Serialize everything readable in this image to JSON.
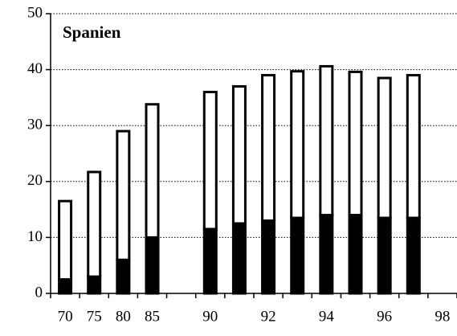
{
  "chart_data": {
    "type": "stacked-bar",
    "title": "Spanien",
    "categories": [
      "70",
      "75",
      "80",
      "85",
      null,
      "90",
      null,
      "92",
      null,
      "94",
      null,
      "96",
      null,
      "98"
    ],
    "series": [
      {
        "color": "#000000",
        "values": [
          2.5,
          3,
          6,
          10,
          null,
          11.5,
          12.5,
          13,
          13.5,
          14,
          14,
          13.5,
          13.5,
          null
        ]
      },
      {
        "color": "#ffffff",
        "values": [
          14,
          18.7,
          23,
          23.8,
          null,
          24.5,
          24.5,
          26,
          26.2,
          26.6,
          25.6,
          25,
          25.5,
          null
        ]
      }
    ],
    "ylim": [
      0,
      50
    ],
    "yticks": [
      0,
      10,
      20,
      30,
      40,
      50
    ],
    "grid": true
  }
}
